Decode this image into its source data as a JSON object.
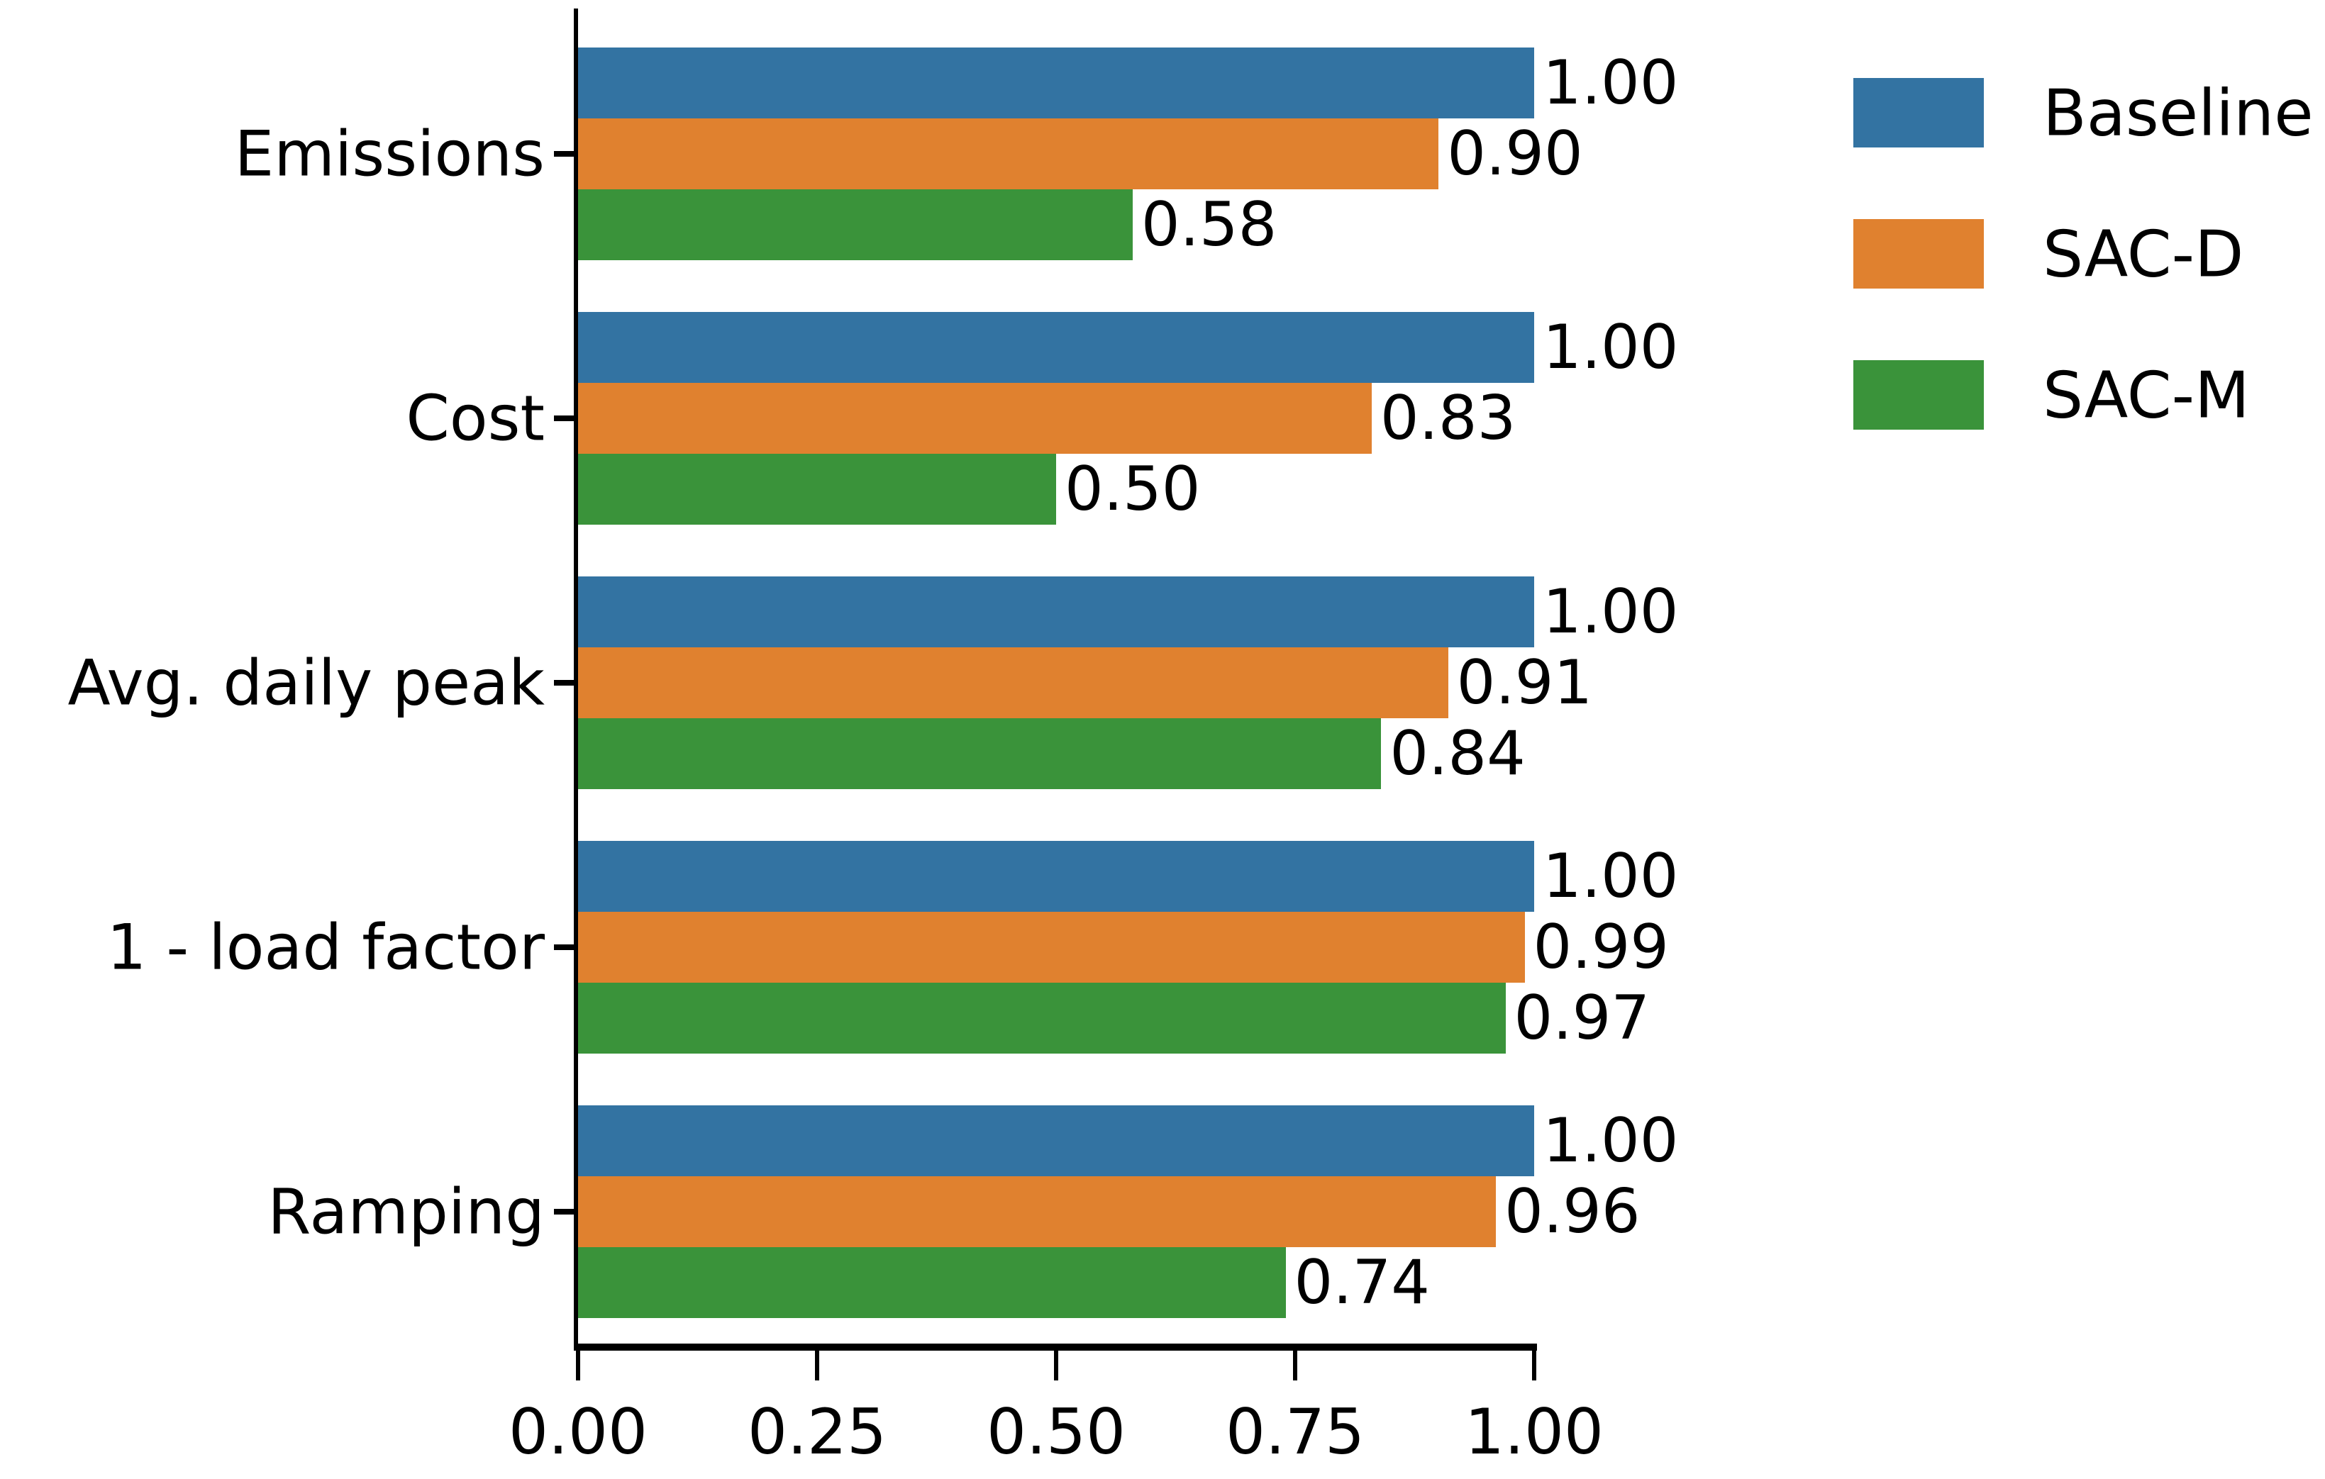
{
  "chart_data": {
    "type": "bar",
    "orientation": "horizontal",
    "title": "",
    "xlabel": "",
    "ylabel": "",
    "categories": [
      "Emissions",
      "Cost",
      "Avg. daily peak",
      "1 - load factor",
      "Ramping"
    ],
    "series": [
      {
        "name": "Baseline",
        "color": "#3373A2",
        "values": [
          1.0,
          1.0,
          1.0,
          1.0,
          1.0
        ]
      },
      {
        "name": "SAC-D",
        "color": "#E0812F",
        "values": [
          0.9,
          0.83,
          0.91,
          0.99,
          0.96
        ]
      },
      {
        "name": "SAC-M",
        "color": "#3A933A",
        "values": [
          0.58,
          0.5,
          0.84,
          0.97,
          0.74
        ]
      }
    ],
    "value_labels": [
      [
        "1.00",
        "0.90",
        "0.58"
      ],
      [
        "1.00",
        "0.83",
        "0.50"
      ],
      [
        "1.00",
        "0.91",
        "0.84"
      ],
      [
        "1.00",
        "0.99",
        "0.97"
      ],
      [
        "1.00",
        "0.96",
        "0.74"
      ]
    ],
    "xticks": [
      "0.00",
      "0.25",
      "0.50",
      "0.75",
      "1.00"
    ],
    "xlim": [
      0,
      1.0
    ],
    "grid": false,
    "legend_position": "upper right",
    "axis_color": "#000000",
    "background_color": "#ffffff"
  }
}
